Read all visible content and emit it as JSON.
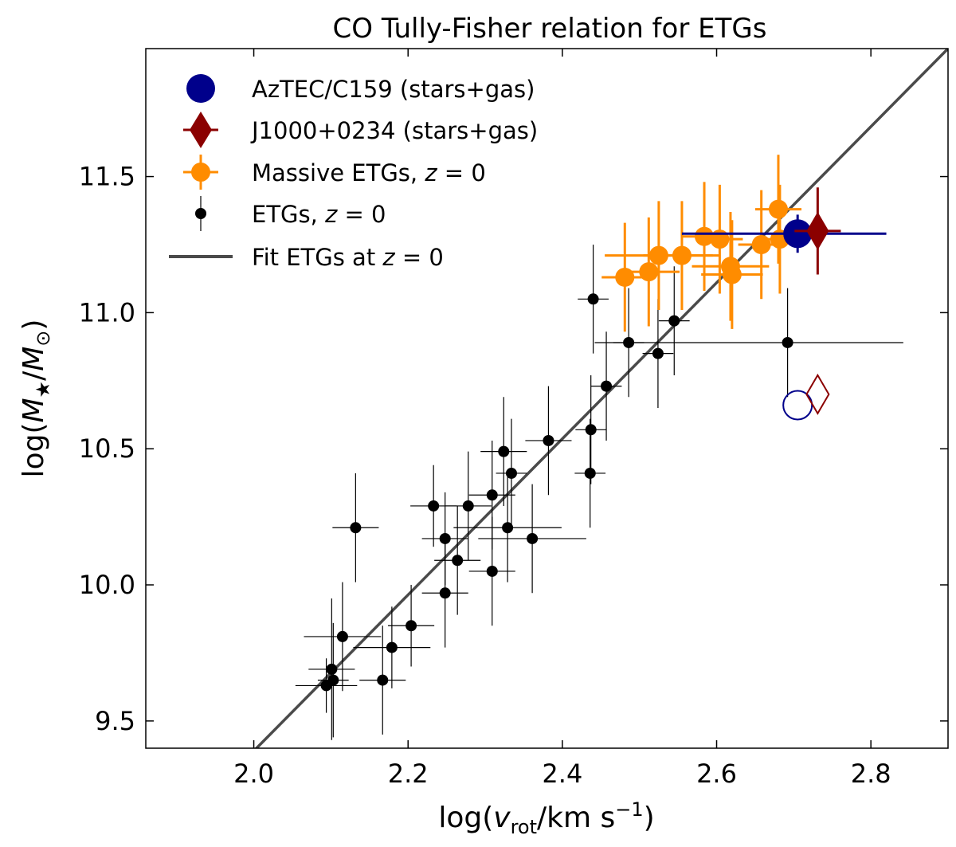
{
  "chart_data": {
    "type": "scatter",
    "title": "CO Tully-Fisher relation for ETGs",
    "xlabel": "log(v_rot/km s^-1)",
    "ylabel": "log(M_★/M_⊙)",
    "xlim": [
      1.86,
      2.9
    ],
    "ylim": [
      9.4,
      11.97
    ],
    "xticks": [
      {
        "v": 2.0,
        "label": "2.0"
      },
      {
        "v": 2.2,
        "label": "2.2"
      },
      {
        "v": 2.4,
        "label": "2.4"
      },
      {
        "v": 2.6,
        "label": "2.6"
      },
      {
        "v": 2.8,
        "label": "2.8"
      }
    ],
    "yticks": [
      {
        "v": 9.5,
        "label": "9.5"
      },
      {
        "v": 10.0,
        "label": "10.0"
      },
      {
        "v": 10.5,
        "label": "10.5"
      },
      {
        "v": 11.0,
        "label": "11.0"
      },
      {
        "v": 11.5,
        "label": "11.5"
      }
    ],
    "fit_line": {
      "name": "Fit ETGs at z = 0",
      "color": "#4a4a4a",
      "x": [
        2.0,
        2.9
      ],
      "y": [
        9.39,
        11.97
      ]
    },
    "series": [
      {
        "name": "ETGs, z = 0",
        "marker": "dot",
        "color": "#000000",
        "points": [
          {
            "x": 2.094,
            "y": 9.63,
            "xe": 0.04,
            "ye": 0.1
          },
          {
            "x": 2.101,
            "y": 9.69,
            "xe": 0.03,
            "ye": 0.26
          },
          {
            "x": 2.103,
            "y": 9.65,
            "xe": 0.02,
            "ye": 0.21
          },
          {
            "x": 2.115,
            "y": 9.81,
            "xe": 0.05,
            "ye": 0.2
          },
          {
            "x": 2.132,
            "y": 10.21,
            "xe": 0.03,
            "ye": 0.2
          },
          {
            "x": 2.167,
            "y": 9.65,
            "xe": 0.03,
            "ye": 0.2
          },
          {
            "x": 2.179,
            "y": 9.77,
            "xe": 0.05,
            "ye": 0.15
          },
          {
            "x": 2.204,
            "y": 9.85,
            "xe": 0.03,
            "ye": 0.15
          },
          {
            "x": 2.233,
            "y": 10.29,
            "xe": 0.03,
            "ye": 0.15
          },
          {
            "x": 2.248,
            "y": 10.17,
            "xe": 0.03,
            "ye": 0.17
          },
          {
            "x": 2.248,
            "y": 9.97,
            "xe": 0.03,
            "ye": 0.2
          },
          {
            "x": 2.264,
            "y": 10.09,
            "xe": 0.03,
            "ye": 0.2
          },
          {
            "x": 2.278,
            "y": 10.29,
            "xe": 0.03,
            "ye": 0.2
          },
          {
            "x": 2.309,
            "y": 10.33,
            "xe": 0.03,
            "ye": 0.2
          },
          {
            "x": 2.309,
            "y": 10.05,
            "xe": 0.03,
            "ye": 0.2
          },
          {
            "x": 2.324,
            "y": 10.49,
            "xe": 0.03,
            "ye": 0.2
          },
          {
            "x": 2.329,
            "y": 10.21,
            "xe": 0.07,
            "ye": 0.2
          },
          {
            "x": 2.334,
            "y": 10.41,
            "xe": 0.02,
            "ye": 0.2
          },
          {
            "x": 2.361,
            "y": 10.17,
            "xe": 0.07,
            "ye": 0.2
          },
          {
            "x": 2.382,
            "y": 10.53,
            "xe": 0.03,
            "ye": 0.2
          },
          {
            "x": 2.436,
            "y": 10.41,
            "xe": 0.02,
            "ye": 0.2
          },
          {
            "x": 2.437,
            "y": 10.57,
            "xe": 0.02,
            "ye": 0.2
          },
          {
            "x": 2.44,
            "y": 11.05,
            "xe": 0.02,
            "ye": 0.2
          },
          {
            "x": 2.457,
            "y": 10.73,
            "xe": 0.02,
            "ye": 0.2
          },
          {
            "x": 2.486,
            "y": 10.89,
            "xe": 0.02,
            "ye": 0.2
          },
          {
            "x": 2.524,
            "y": 10.85,
            "xe": 0.02,
            "ye": 0.2
          },
          {
            "x": 2.545,
            "y": 10.97,
            "xe": 0.02,
            "ye": 0.2
          },
          {
            "x": 2.692,
            "y": 10.89,
            "xe_lo": 0.25,
            "xe_hi": 0.15,
            "ye": 0.2
          }
        ]
      },
      {
        "name": "Massive ETGs, z = 0",
        "marker": "circle",
        "color": "#ff8c00",
        "points": [
          {
            "x": 2.481,
            "y": 11.13,
            "xe": 0.03,
            "ye": 0.2
          },
          {
            "x": 2.512,
            "y": 11.15,
            "xe": 0.04,
            "ye": 0.2
          },
          {
            "x": 2.525,
            "y": 11.21,
            "xe": 0.07,
            "ye": 0.2
          },
          {
            "x": 2.555,
            "y": 11.21,
            "xe": 0.05,
            "ye": 0.2
          },
          {
            "x": 2.584,
            "y": 11.28,
            "xe": 0.03,
            "ye": 0.2
          },
          {
            "x": 2.604,
            "y": 11.27,
            "xe": 0.03,
            "ye": 0.2
          },
          {
            "x": 2.618,
            "y": 11.17,
            "xe": 0.05,
            "ye": 0.2
          },
          {
            "x": 2.62,
            "y": 11.14,
            "xe": 0.04,
            "ye": 0.2
          },
          {
            "x": 2.658,
            "y": 11.25,
            "xe": 0.03,
            "ye": 0.2
          },
          {
            "x": 2.68,
            "y": 11.38,
            "xe": 0.03,
            "ye": 0.2
          },
          {
            "x": 2.682,
            "y": 11.27,
            "xe": 0.03,
            "ye": 0.2
          }
        ]
      },
      {
        "name": "AzTEC/C159 (stars+gas)",
        "marker": "big-circle",
        "color": "#00008b",
        "points": [
          {
            "x": 2.705,
            "y": 11.29,
            "xe_lo": 0.15,
            "xe_hi": 0.115,
            "ye": 0.07
          }
        ],
        "stellar_only": {
          "x": 2.705,
          "y": 10.66
        }
      },
      {
        "name": "J1000+0234 (stars+gas)",
        "marker": "diamond",
        "color": "#8b0000",
        "points": [
          {
            "x": 2.731,
            "y": 11.3,
            "xe": 0.03,
            "ye": 0.16
          }
        ],
        "stellar_only": {
          "x": 2.731,
          "y": 10.7
        }
      }
    ],
    "legend": {
      "position": "top-left",
      "entries": [
        "AzTEC/C159 (stars+gas)",
        "J1000+0234 (stars+gas)",
        "Massive ETGs, z = 0",
        "ETGs, z = 0",
        "Fit ETGs at z = 0"
      ]
    }
  }
}
